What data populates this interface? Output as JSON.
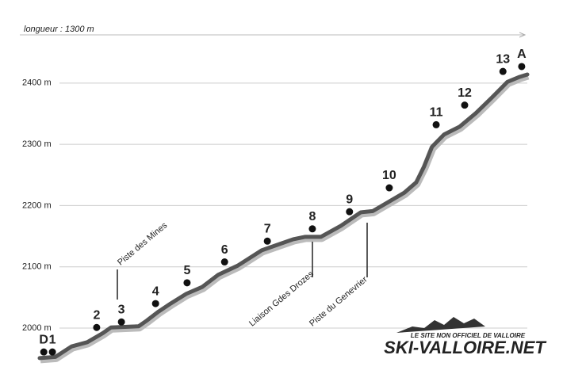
{
  "chart_data": {
    "type": "line",
    "x_label": "longueur : 1300 m",
    "xlim": [
      0,
      1300
    ],
    "ylim": [
      1940,
      2480
    ],
    "yticks": [
      {
        "value": 2000,
        "label": "2000 m"
      },
      {
        "value": 2100,
        "label": "2100 m"
      },
      {
        "value": 2200,
        "label": "2200 m"
      },
      {
        "value": 2300,
        "label": "2300 m"
      },
      {
        "value": 2400,
        "label": "2400 m"
      }
    ],
    "grid": true,
    "series": [
      {
        "name": "terrain",
        "color": "#555555",
        "x": [
          0,
          42,
          85,
          127,
          169,
          190,
          264,
          285,
          317,
          349,
          391,
          433,
          476,
          528,
          592,
          634,
          676,
          708,
          750,
          803,
          856,
          888,
          930,
          972,
          1004,
          1025,
          1046,
          1078,
          1120,
          1163,
          1205,
          1247,
          1279,
          1300
        ],
        "values": [
          1951,
          1953,
          1970,
          1977,
          1992,
          2001,
          2003,
          2012,
          2027,
          2040,
          2056,
          2067,
          2087,
          2102,
          2127,
          2136,
          2145,
          2149,
          2149,
          2167,
          2189,
          2191,
          2206,
          2221,
          2238,
          2264,
          2296,
          2316,
          2329,
          2351,
          2376,
          2402,
          2410,
          2414
        ]
      },
      {
        "name": "pylones",
        "color": "#111111",
        "labels": [
          "D",
          "1",
          "2",
          "3",
          "4",
          "5",
          "6",
          "7",
          "8",
          "9",
          "10",
          "11",
          "12",
          "13",
          "A"
        ],
        "x": [
          11,
          34,
          152,
          218,
          309,
          393,
          493,
          607,
          727,
          826,
          932,
          1057,
          1133,
          1235,
          1285
        ],
        "values": [
          1961,
          1961,
          2001,
          2010,
          2040,
          2074,
          2108,
          2142,
          2162,
          2190,
          2229,
          2332,
          2364,
          2419,
          2427
        ]
      }
    ],
    "annotations": [
      "Piste des Mines",
      "Liaison Gdes Drozes",
      "Piste du Genevrier"
    ]
  },
  "logo": {
    "subtitle": "LE SITE NON OFFICIEL DE VALLOIRE",
    "title": "SKI-VALLOIRE.NET"
  }
}
